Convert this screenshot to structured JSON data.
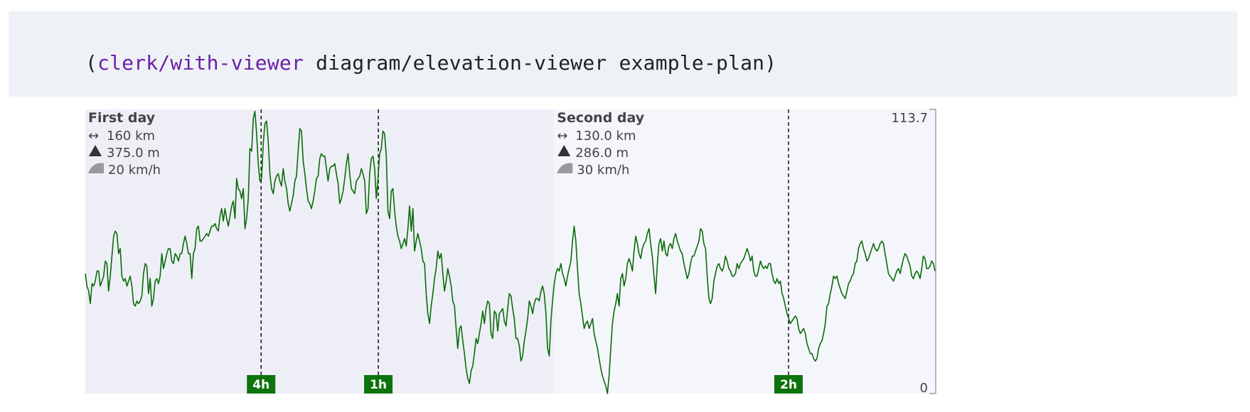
{
  "code": {
    "open": "(",
    "fn": "clerk/with-viewer",
    "rest": " diagram/elevation-viewer example-plan",
    "close": ")"
  },
  "colors": {
    "line": "#0b6b0b",
    "day1_bg": "#eeeff6",
    "day2_bg": "#f5f6fb",
    "marker_bg": "#0d730d",
    "marker_text": "#ffffff",
    "text": "#444444"
  },
  "chart_data": {
    "type": "line",
    "ylim": [
      0,
      113.7
    ],
    "y_axis_ticks": [
      "113.7",
      "0"
    ],
    "days": [
      {
        "title": "First day",
        "distance": "160 km",
        "climb": "375.0 m",
        "speed": "20 km/h",
        "x_start": 0,
        "x_end": 160
      },
      {
        "title": "Second day",
        "distance": "130.0 km",
        "climb": "286.0 m",
        "speed": "30 km/h",
        "x_start": 160,
        "x_end": 290
      }
    ],
    "stop_markers": [
      {
        "label": "4h",
        "x": 60
      },
      {
        "label": "1h",
        "x": 100
      },
      {
        "label": "2h",
        "x": 240
      }
    ],
    "icons": {
      "distance": "double-arrow-icon",
      "climb": "mountain-triangle-icon",
      "speed": "speed-icon"
    },
    "series": [
      {
        "values": [
          48,
          43,
          41,
          36,
          44,
          43,
          45,
          49,
          49,
          43,
          45,
          47,
          53,
          52,
          41,
          47,
          55,
          63,
          65,
          64,
          56,
          58,
          47,
          45,
          46,
          43,
          45,
          47,
          43,
          36,
          35,
          37,
          36,
          37,
          39,
          48,
          52,
          51,
          40,
          46,
          35,
          38,
          45,
          46,
          44,
          47,
          56,
          50,
          53,
          56,
          58,
          58,
          53,
          52,
          56,
          55,
          53,
          56,
          56,
          60,
          63,
          60,
          56,
          56,
          46,
          56,
          58,
          66,
          67,
          61,
          61,
          62,
          63,
          64,
          63,
          65,
          67,
          67,
          68,
          66,
          65,
          71,
          74,
          69,
          74,
          70,
          67,
          71,
          75,
          77,
          70,
          86,
          82,
          81,
          78,
          82,
          66,
          70,
          78,
          98,
          97,
          110,
          113,
          104,
          92,
          85,
          86,
          100,
          108,
          109,
          101,
          88,
          82,
          80,
          85,
          87,
          88,
          85,
          83,
          90,
          85,
          82,
          76,
          73,
          76,
          79,
          85,
          87,
          97,
          106,
          105,
          93,
          88,
          82,
          77,
          76,
          74,
          77,
          81,
          86,
          87,
          94,
          96,
          95,
          95,
          90,
          85,
          90,
          91,
          91,
          92,
          88,
          84,
          76,
          78,
          81,
          86,
          92,
          96,
          88,
          82,
          81,
          80,
          85,
          86,
          87,
          90,
          88,
          85,
          72,
          74,
          88,
          94,
          95,
          90,
          78,
          86,
          96,
          98,
          105,
          104,
          95,
          73,
          70,
          81,
          82,
          73,
          67,
          63,
          61,
          58,
          60,
          62,
          59,
          66,
          75,
          65,
          74,
          57,
          61,
          64,
          61,
          58,
          53,
          52,
          40,
          32,
          28,
          35,
          40,
          46,
          50,
          57,
          54,
          56,
          48,
          41,
          45,
          50,
          47,
          43,
          37,
          35,
          26,
          18,
          26,
          27,
          21,
          16,
          10,
          6,
          4,
          9,
          11,
          16,
          22,
          20,
          24,
          28,
          33,
          28,
          34,
          37,
          36,
          24,
          22,
          33,
          32,
          25,
          32,
          33,
          34,
          29,
          27,
          34,
          40,
          39,
          34,
          30,
          22,
          22,
          19,
          13,
          15,
          21,
          25,
          30,
          37,
          35,
          32,
          36,
          38,
          38,
          37,
          41,
          43,
          40,
          32,
          18,
          15,
          29,
          37,
          44,
          48,
          50,
          49,
          52,
          48,
          46,
          43,
          47,
          50,
          53,
          61,
          67,
          61,
          50,
          40,
          36,
          31,
          26,
          28,
          29,
          26,
          28,
          30,
          24,
          21,
          18,
          14,
          10,
          7,
          5,
          3,
          0,
          7,
          18,
          28,
          33,
          36,
          40,
          35,
          46,
          48,
          43,
          46,
          52,
          54,
          52,
          49,
          57,
          63,
          60,
          56,
          54,
          58,
          60,
          61,
          64,
          66,
          60,
          55,
          47,
          40,
          52,
          60,
          62,
          57,
          61,
          56,
          55,
          59,
          60,
          58,
          62,
          64,
          61,
          59,
          57,
          56,
          52,
          49,
          46,
          48,
          52,
          55,
          55,
          57,
          59,
          61,
          66,
          65,
          60,
          58,
          47,
          38,
          36,
          38,
          45,
          48,
          51,
          52,
          50,
          49,
          51,
          55,
          53,
          50,
          49,
          47,
          47,
          48,
          52,
          50,
          52,
          53,
          54,
          56,
          58,
          56,
          53,
          55,
          49,
          47,
          47,
          50,
          53,
          51,
          50,
          51,
          50,
          52,
          52,
          48,
          45,
          44,
          46,
          44,
          45,
          40,
          38,
          35,
          32,
          30,
          28,
          29,
          30,
          31,
          30,
          26,
          24,
          25,
          26,
          24,
          20,
          18,
          16,
          16,
          14,
          13,
          14,
          18,
          20,
          21,
          24,
          28,
          35,
          36,
          40,
          43,
          47,
          46,
          47,
          44,
          42,
          40,
          39,
          38,
          41,
          44,
          45,
          47,
          48,
          52,
          53,
          58,
          60,
          61,
          58,
          56,
          53,
          54,
          56,
          58,
          60,
          58,
          57,
          58,
          60,
          61,
          60,
          56,
          52,
          48,
          47,
          46,
          45,
          47,
          49,
          50,
          48,
          51,
          54,
          56,
          55,
          53,
          51,
          47,
          46,
          48,
          49,
          48,
          46,
          50,
          55,
          54,
          50,
          50,
          51,
          53,
          52,
          49
        ]
      }
    ]
  }
}
